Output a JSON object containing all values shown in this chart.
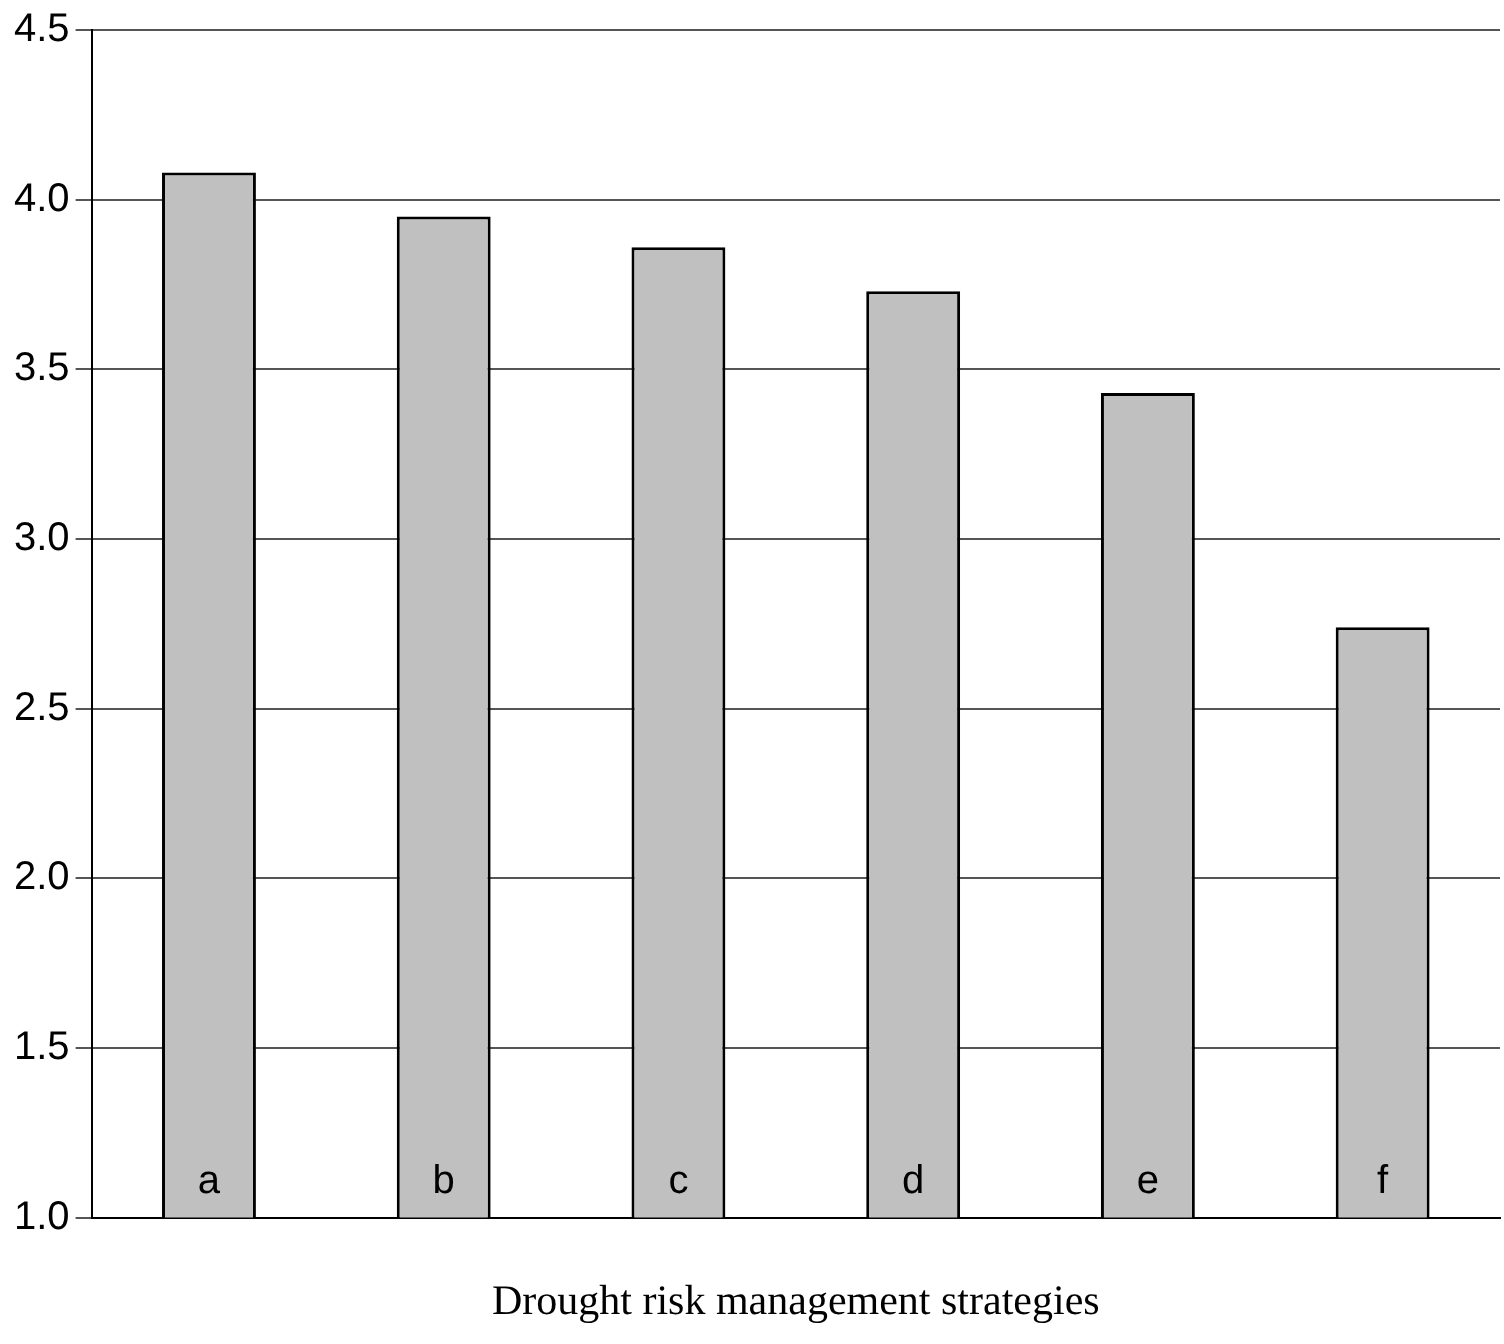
{
  "chart_data": {
    "type": "bar",
    "xlabel": "Drought risk management strategies",
    "categories": [
      "a",
      "b",
      "c",
      "d",
      "e",
      "f"
    ],
    "values": [
      4.08,
      3.95,
      3.86,
      3.73,
      3.43,
      2.74
    ],
    "color": "#c0c0c0",
    "ylim": [
      1.0,
      4.5
    ],
    "yticks": [
      {
        "value": 1.0,
        "label": "1.0"
      },
      {
        "value": 1.5,
        "label": "1.5"
      },
      {
        "value": 2.0,
        "label": "2.0"
      },
      {
        "value": 2.5,
        "label": "2.5"
      },
      {
        "value": 3.0,
        "label": "3.0"
      },
      {
        "value": 3.5,
        "label": "3.5"
      },
      {
        "value": 4.0,
        "label": "4.0"
      },
      {
        "value": 4.5,
        "label": "4.5"
      }
    ],
    "grid": "y",
    "legend": false
  }
}
